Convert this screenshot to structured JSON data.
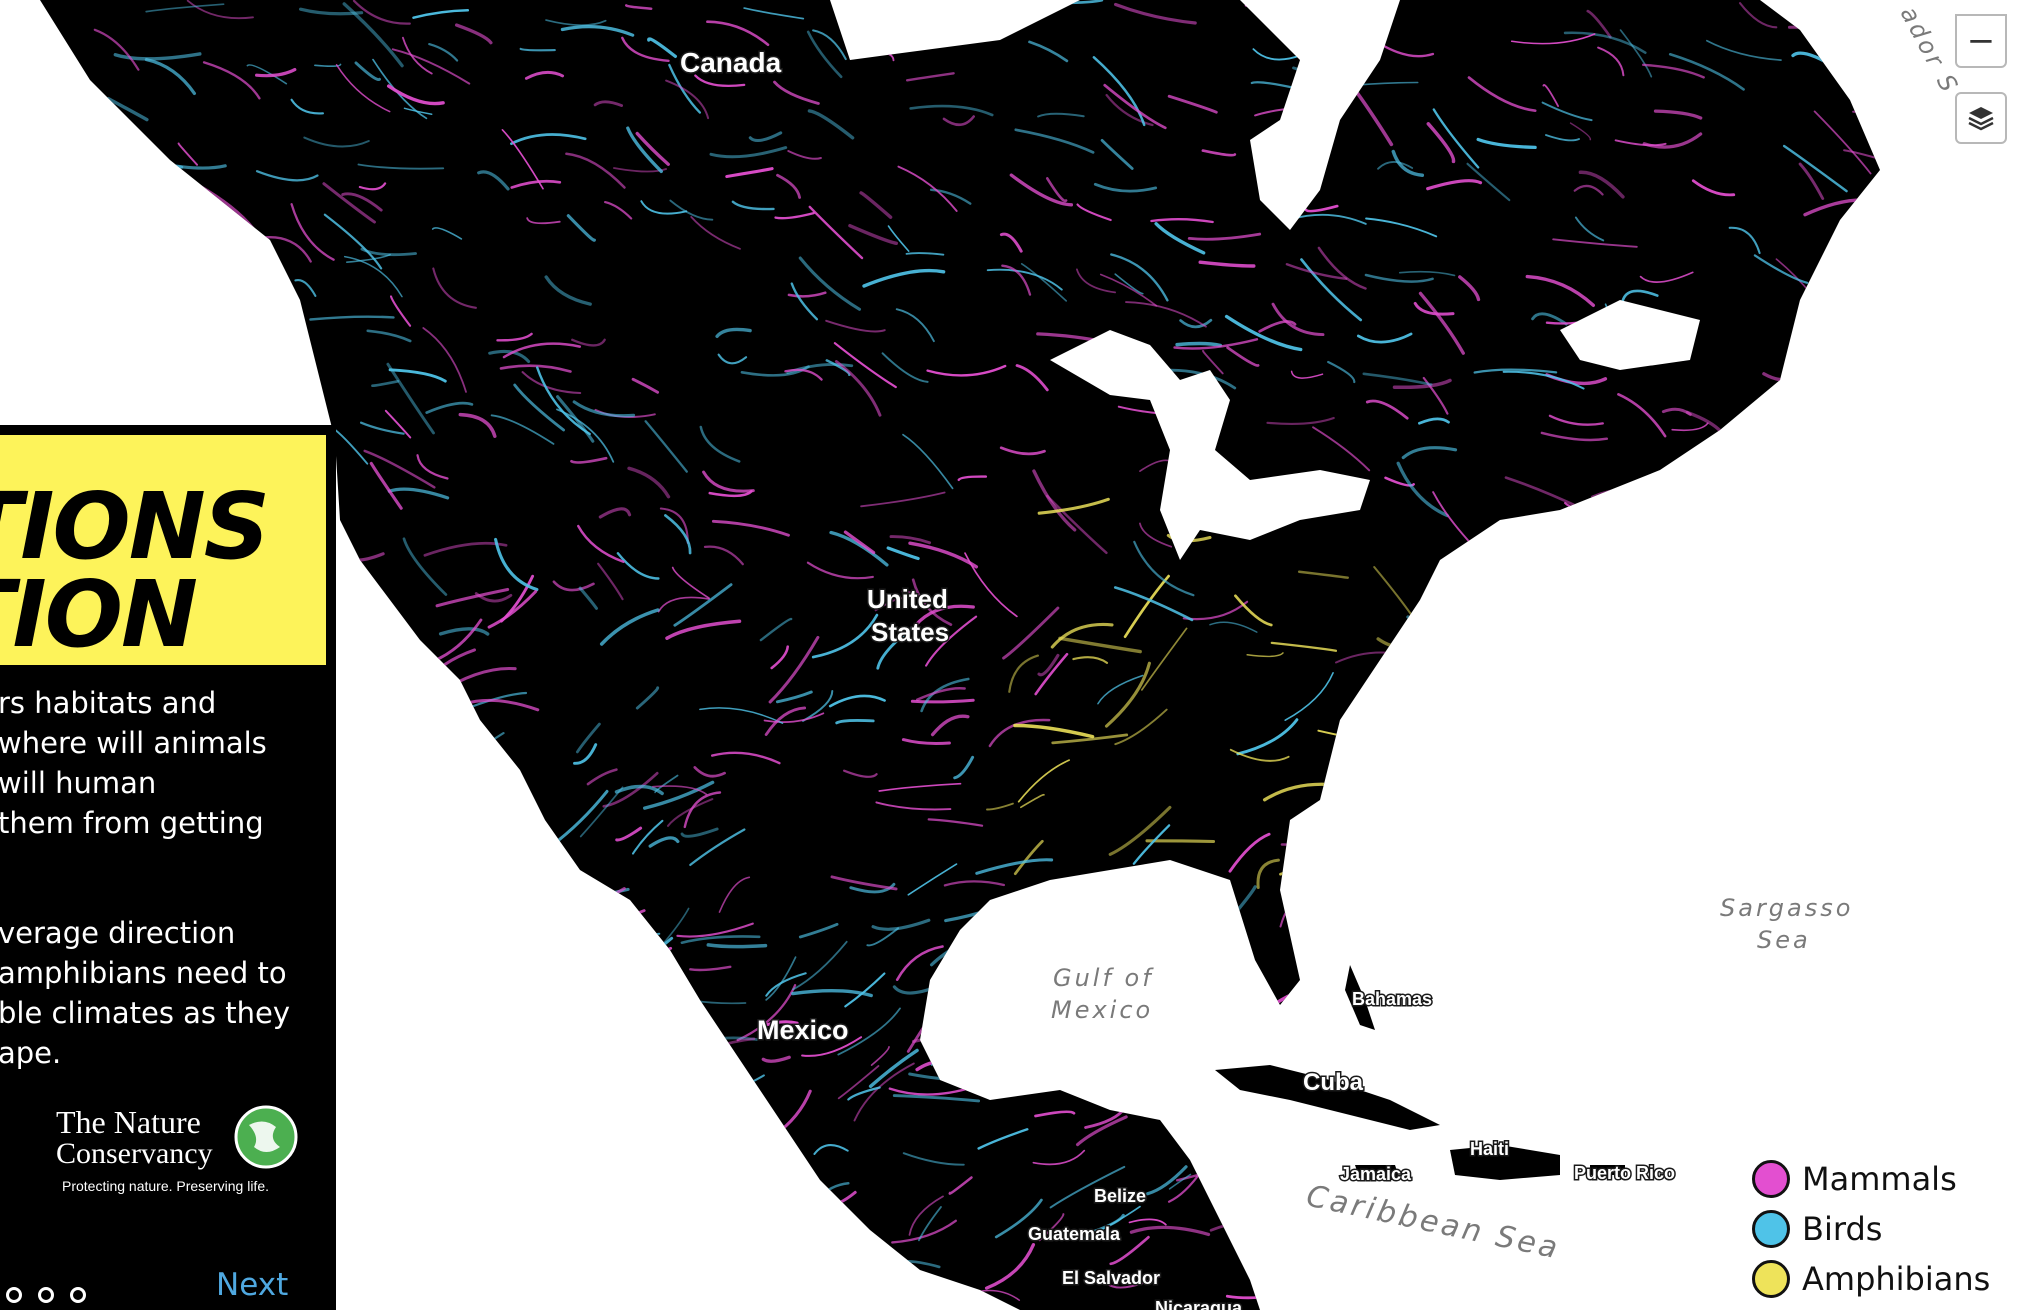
{
  "map": {
    "labels": {
      "canada": "Canada",
      "us_line1": "United",
      "us_line2": "States",
      "mexico": "Mexico",
      "bahamas": "Bahamas",
      "cuba": "Cuba",
      "haiti": "Haiti",
      "jamaica": "Jamaica",
      "puerto_rico": "Puerto Rico",
      "belize": "Belize",
      "guatemala": "Guatemala",
      "el_salvador": "El Salvador",
      "nicaragua": "Nicaragua",
      "labrador_fragment": "ador S"
    },
    "seas": {
      "gulf_line1": "Gulf of",
      "gulf_line2": "Mexico",
      "sargasso_line1": "Sargasso",
      "sargasso_line2": "Sea",
      "caribbean": "Caribbean Sea"
    },
    "colors": {
      "land": "#000000",
      "water": "#ffffff",
      "mammals": "#e34fd0",
      "birds": "#4fc3e8",
      "amphibians": "#eee35a"
    }
  },
  "panel": {
    "title_line1": "TIONS",
    "title_line2": "TION",
    "paragraph1": [
      "rs habitats and",
      "where will animals",
      "will human",
      "them from getting"
    ],
    "paragraph2": [
      "verage direction",
      "amphibians need to",
      "ble climates as they",
      "ape."
    ],
    "logo": {
      "name_line1": "The Nature",
      "name_line2": "Conservancy",
      "tagline": "Protecting nature. Preserving life."
    },
    "next_label": "Next",
    "pages": 3
  },
  "controls": {
    "zoom_out": "−",
    "layers_icon": "layers-icon"
  },
  "legend": [
    {
      "label": "Mammals",
      "color": "#e34fd0"
    },
    {
      "label": "Birds",
      "color": "#4fc3e8"
    },
    {
      "label": "Amphibians",
      "color": "#eee35a"
    }
  ]
}
